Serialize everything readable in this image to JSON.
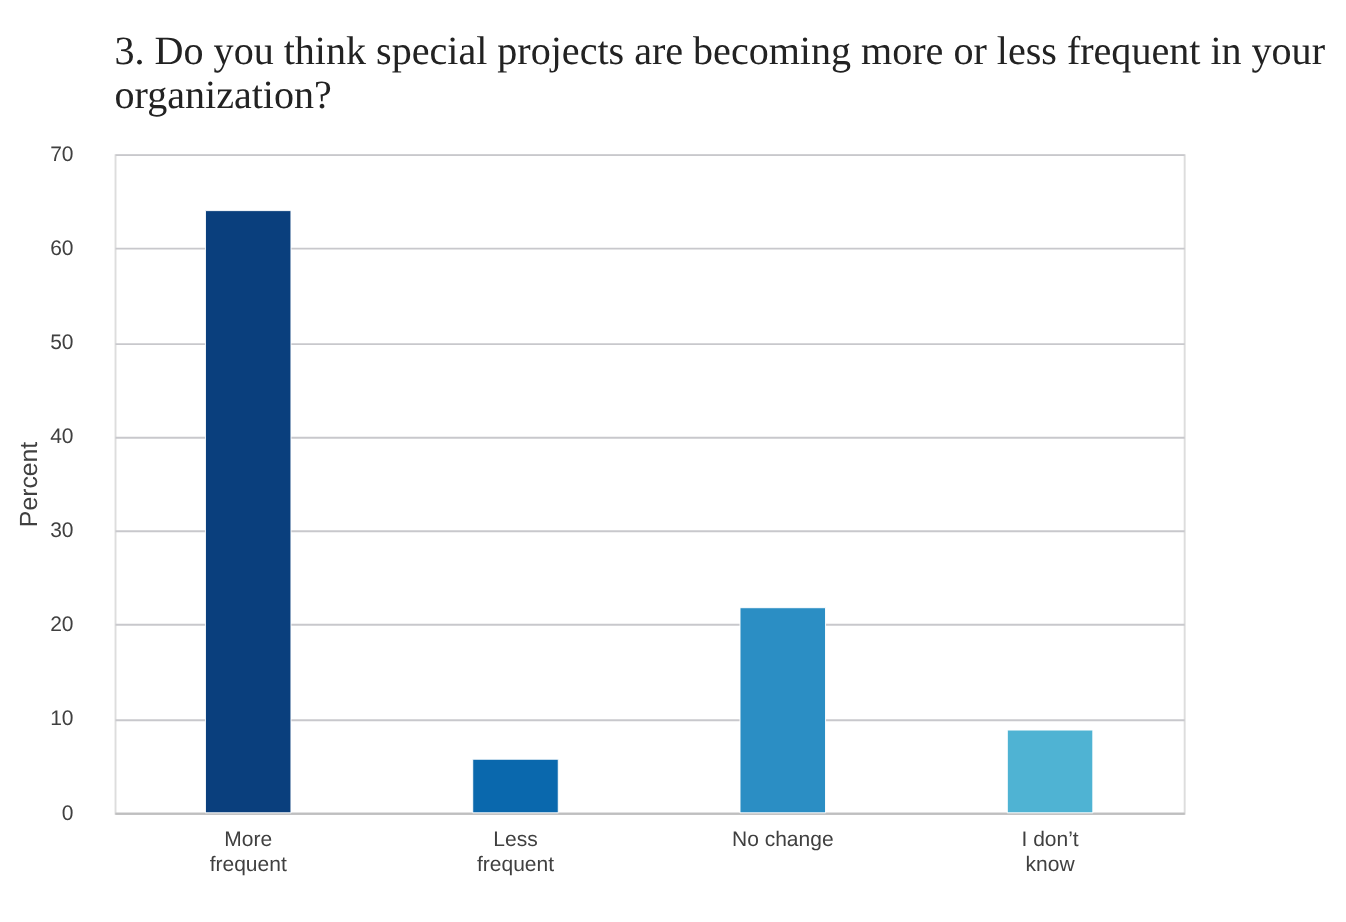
{
  "chart_data": {
    "type": "bar",
    "title": "3. Do you think special projects are becoming more or less frequent in your organization?",
    "ylabel": "Percent",
    "categories": [
      "More\nfrequent",
      "Less\nfrequent",
      "No change",
      "I don’t\nknow"
    ],
    "values": [
      64,
      5.7,
      21.8,
      8.8
    ],
    "colors": [
      "#0a3f7d",
      "#0a68ad",
      "#2b8ec4",
      "#4fb3d3"
    ],
    "ylim": [
      0,
      70
    ],
    "yticks": [
      0,
      10,
      20,
      30,
      40,
      50,
      60,
      70
    ],
    "grid": "y"
  }
}
